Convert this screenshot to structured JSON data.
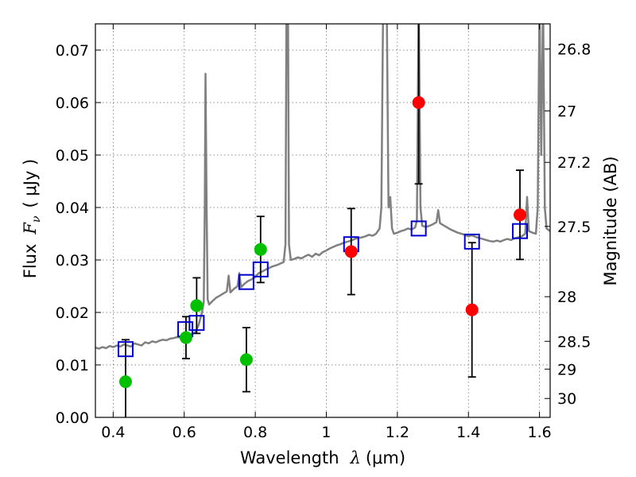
{
  "chart_data": {
    "type": "scatter",
    "xlabel_prefix": "Wavelength",
    "xlabel_symbol": "λ",
    "xlabel_unit": "(μm)",
    "ylabel_prefix": "Flux",
    "ylabel_symbol": "F",
    "ylabel_sub": "ν",
    "ylabel_unit": "( μJy )",
    "y2label": "Magnitude (AB)",
    "xlim": [
      0.35,
      1.63
    ],
    "ylim": [
      0.0,
      0.075
    ],
    "grid": true,
    "x_ticks": [
      0.4,
      0.6,
      0.8,
      1.0,
      1.2,
      1.4,
      1.6
    ],
    "x_tick_labels": [
      "0.4",
      "0.6",
      "0.8",
      "1",
      "1.2",
      "1.4",
      "1.6"
    ],
    "y_ticks": [
      0.0,
      0.01,
      0.02,
      0.03,
      0.04,
      0.05,
      0.06,
      0.07
    ],
    "y_tick_labels": [
      "0.00",
      "0.01",
      "0.02",
      "0.03",
      "0.04",
      "0.05",
      "0.06",
      "0.07"
    ],
    "y2_ticks": [
      {
        "label": "26.8",
        "flux": 0.0702
      },
      {
        "label": "27",
        "flux": 0.0584
      },
      {
        "label": "27.2",
        "flux": 0.0486
      },
      {
        "label": "27.5",
        "flux": 0.0364
      },
      {
        "label": "28",
        "flux": 0.023
      },
      {
        "label": "28.5",
        "flux": 0.0145
      },
      {
        "label": "29",
        "flux": 0.0092
      },
      {
        "label": "30",
        "flux": 0.0036
      }
    ],
    "colors": {
      "spectrum": "#808080",
      "model": "#0000cc",
      "green": "#00c000",
      "red": "#ff0000",
      "errorbar": "#000000",
      "grid": "#b0b0b0"
    },
    "series": [
      {
        "kind": "spectrum",
        "points": [
          [
            0.35,
            0.0133
          ],
          [
            0.36,
            0.0131
          ],
          [
            0.37,
            0.0134
          ],
          [
            0.38,
            0.0132
          ],
          [
            0.39,
            0.0136
          ],
          [
            0.4,
            0.0134
          ],
          [
            0.41,
            0.0137
          ],
          [
            0.42,
            0.0135
          ],
          [
            0.43,
            0.0139
          ],
          [
            0.44,
            0.0137
          ],
          [
            0.45,
            0.0135
          ],
          [
            0.46,
            0.0141
          ],
          [
            0.47,
            0.0139
          ],
          [
            0.48,
            0.0137
          ],
          [
            0.49,
            0.0143
          ],
          [
            0.5,
            0.0141
          ],
          [
            0.51,
            0.0145
          ],
          [
            0.52,
            0.0143
          ],
          [
            0.53,
            0.0146
          ],
          [
            0.54,
            0.0148
          ],
          [
            0.55,
            0.0147
          ],
          [
            0.56,
            0.015
          ],
          [
            0.57,
            0.0151
          ],
          [
            0.58,
            0.0153
          ],
          [
            0.59,
            0.0152
          ],
          [
            0.6,
            0.0155
          ],
          [
            0.61,
            0.0157
          ],
          [
            0.62,
            0.0159
          ],
          [
            0.63,
            0.0161
          ],
          [
            0.64,
            0.0175
          ],
          [
            0.65,
            0.02
          ],
          [
            0.655,
            0.022
          ],
          [
            0.658,
            0.04
          ],
          [
            0.66,
            0.0655
          ],
          [
            0.663,
            0.04
          ],
          [
            0.666,
            0.0225
          ],
          [
            0.67,
            0.0215
          ],
          [
            0.68,
            0.0222
          ],
          [
            0.69,
            0.0228
          ],
          [
            0.7,
            0.0232
          ],
          [
            0.71,
            0.0236
          ],
          [
            0.72,
            0.024
          ],
          [
            0.725,
            0.027
          ],
          [
            0.73,
            0.0238
          ],
          [
            0.74,
            0.0245
          ],
          [
            0.75,
            0.025
          ],
          [
            0.755,
            0.0275
          ],
          [
            0.76,
            0.0248
          ],
          [
            0.77,
            0.0255
          ],
          [
            0.78,
            0.026
          ],
          [
            0.79,
            0.0263
          ],
          [
            0.8,
            0.0268
          ],
          [
            0.81,
            0.0275
          ],
          [
            0.82,
            0.0278
          ],
          [
            0.83,
            0.0282
          ],
          [
            0.84,
            0.0285
          ],
          [
            0.85,
            0.0288
          ],
          [
            0.86,
            0.029
          ],
          [
            0.87,
            0.0293
          ],
          [
            0.88,
            0.0296
          ],
          [
            0.885,
            0.033
          ],
          [
            0.888,
            0.08
          ],
          [
            0.892,
            0.08
          ],
          [
            0.895,
            0.033
          ],
          [
            0.9,
            0.03
          ],
          [
            0.91,
            0.0302
          ],
          [
            0.92,
            0.0305
          ],
          [
            0.93,
            0.0303
          ],
          [
            0.94,
            0.0307
          ],
          [
            0.95,
            0.031
          ],
          [
            0.96,
            0.0306
          ],
          [
            0.97,
            0.0312
          ],
          [
            0.98,
            0.0309
          ],
          [
            0.99,
            0.0315
          ],
          [
            1.0,
            0.0318
          ],
          [
            1.01,
            0.0322
          ],
          [
            1.02,
            0.0325
          ],
          [
            1.03,
            0.0328
          ],
          [
            1.04,
            0.033
          ],
          [
            1.05,
            0.0333
          ],
          [
            1.06,
            0.0335
          ],
          [
            1.07,
            0.0337
          ],
          [
            1.08,
            0.034
          ],
          [
            1.09,
            0.0342
          ],
          [
            1.1,
            0.0343
          ],
          [
            1.11,
            0.0345
          ],
          [
            1.12,
            0.0348
          ],
          [
            1.13,
            0.0346
          ],
          [
            1.14,
            0.035
          ],
          [
            1.15,
            0.036
          ],
          [
            1.155,
            0.04
          ],
          [
            1.16,
            0.08
          ],
          [
            1.17,
            0.08
          ],
          [
            1.175,
            0.04
          ],
          [
            1.18,
            0.042
          ],
          [
            1.185,
            0.036
          ],
          [
            1.19,
            0.035
          ],
          [
            1.2,
            0.0352
          ],
          [
            1.21,
            0.0355
          ],
          [
            1.22,
            0.0357
          ],
          [
            1.23,
            0.036
          ],
          [
            1.24,
            0.0358
          ],
          [
            1.25,
            0.0362
          ],
          [
            1.255,
            0.0375
          ],
          [
            1.26,
            0.08
          ],
          [
            1.265,
            0.04
          ],
          [
            1.27,
            0.0365
          ],
          [
            1.28,
            0.0363
          ],
          [
            1.29,
            0.0365
          ],
          [
            1.3,
            0.0368
          ],
          [
            1.31,
            0.0372
          ],
          [
            1.315,
            0.0395
          ],
          [
            1.32,
            0.037
          ],
          [
            1.33,
            0.0366
          ],
          [
            1.34,
            0.0362
          ],
          [
            1.35,
            0.0358
          ],
          [
            1.36,
            0.0355
          ],
          [
            1.37,
            0.0352
          ],
          [
            1.38,
            0.035
          ],
          [
            1.39,
            0.0348
          ],
          [
            1.4,
            0.0345
          ],
          [
            1.41,
            0.0347
          ],
          [
            1.42,
            0.0344
          ],
          [
            1.43,
            0.0342
          ],
          [
            1.44,
            0.034
          ],
          [
            1.45,
            0.0338
          ],
          [
            1.46,
            0.0336
          ],
          [
            1.47,
            0.0335
          ],
          [
            1.48,
            0.0337
          ],
          [
            1.49,
            0.0335
          ],
          [
            1.5,
            0.0338
          ],
          [
            1.51,
            0.034
          ],
          [
            1.52,
            0.0338
          ],
          [
            1.53,
            0.0341
          ],
          [
            1.54,
            0.0343
          ],
          [
            1.55,
            0.0345
          ],
          [
            1.56,
            0.035
          ],
          [
            1.565,
            0.042
          ],
          [
            1.57,
            0.0355
          ],
          [
            1.58,
            0.0352
          ],
          [
            1.59,
            0.035
          ],
          [
            1.595,
            0.04
          ],
          [
            1.6,
            0.08
          ],
          [
            1.605,
            0.05
          ],
          [
            1.61,
            0.08
          ],
          [
            1.615,
            0.04
          ],
          [
            1.62,
            0.036
          ],
          [
            1.63,
            0.0355
          ]
        ]
      },
      {
        "kind": "model_squares",
        "points": [
          [
            0.435,
            0.013
          ],
          [
            0.603,
            0.0168
          ],
          [
            0.635,
            0.018
          ],
          [
            0.775,
            0.0258
          ],
          [
            0.815,
            0.0282
          ],
          [
            1.07,
            0.033
          ],
          [
            1.26,
            0.036
          ],
          [
            1.41,
            0.0335
          ],
          [
            1.545,
            0.0355
          ]
        ]
      },
      {
        "kind": "green_points",
        "points": [
          {
            "x": 0.435,
            "y": 0.0068,
            "yerr": 0.008
          },
          {
            "x": 0.605,
            "y": 0.0152,
            "yerr": 0.004
          },
          {
            "x": 0.635,
            "y": 0.0213,
            "yerr": 0.0053
          },
          {
            "x": 0.775,
            "y": 0.011,
            "yerr": 0.0061
          },
          {
            "x": 0.815,
            "y": 0.032,
            "yerr": 0.0063
          }
        ]
      },
      {
        "kind": "red_points",
        "points": [
          {
            "x": 1.07,
            "y": 0.0316,
            "yerr": 0.0082
          },
          {
            "x": 1.26,
            "y": 0.06,
            "yerr": 0.0155
          },
          {
            "x": 1.41,
            "y": 0.0205,
            "yerr": 0.0128
          },
          {
            "x": 1.545,
            "y": 0.0386,
            "yerr": 0.0085
          }
        ]
      }
    ]
  }
}
